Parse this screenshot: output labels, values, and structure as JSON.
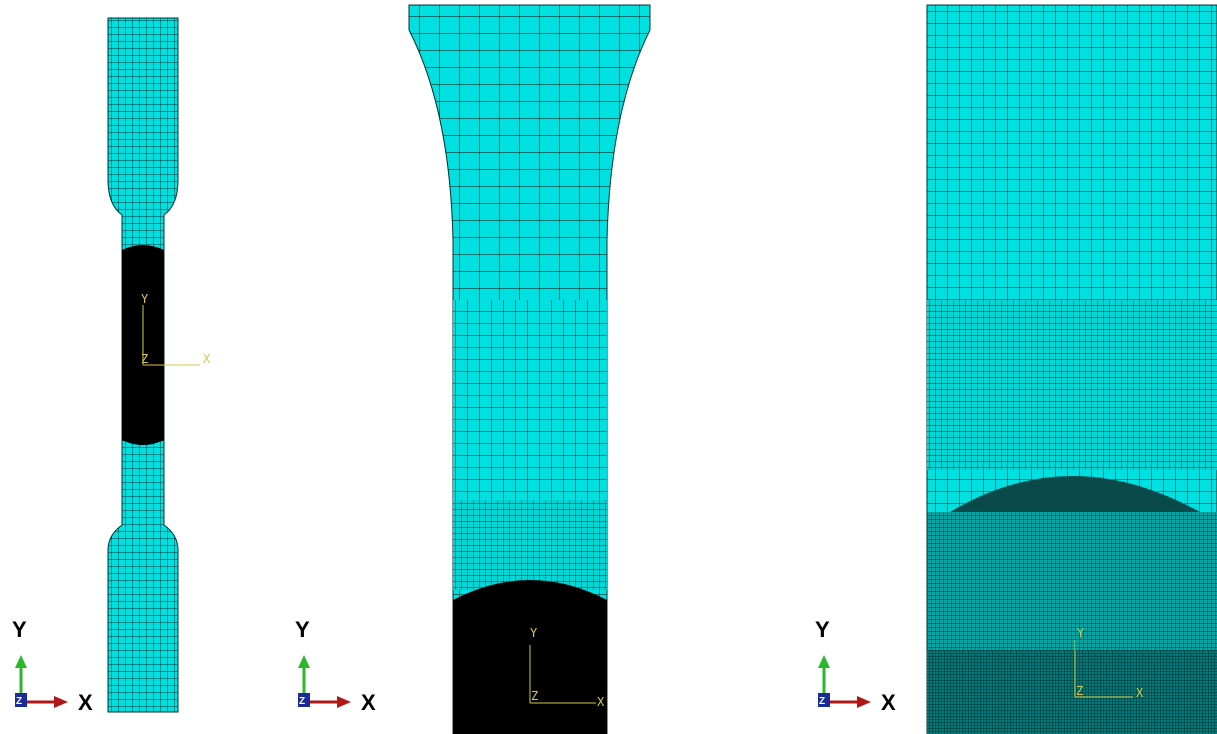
{
  "panels": [
    {
      "triad": {
        "y": "Y",
        "x": "X",
        "z": "Z"
      },
      "csys": {
        "y": "Y",
        "z": "Z",
        "x": "X"
      }
    },
    {
      "triad": {
        "y": "Y",
        "x": "X",
        "z": "Z"
      },
      "csys": {
        "y": "Y",
        "z": "Z",
        "x": "X"
      }
    },
    {
      "triad": {
        "y": "Y",
        "x": "X",
        "z": "Z"
      },
      "csys": {
        "y": "Y",
        "z": "Z",
        "x": "X"
      }
    }
  ]
}
